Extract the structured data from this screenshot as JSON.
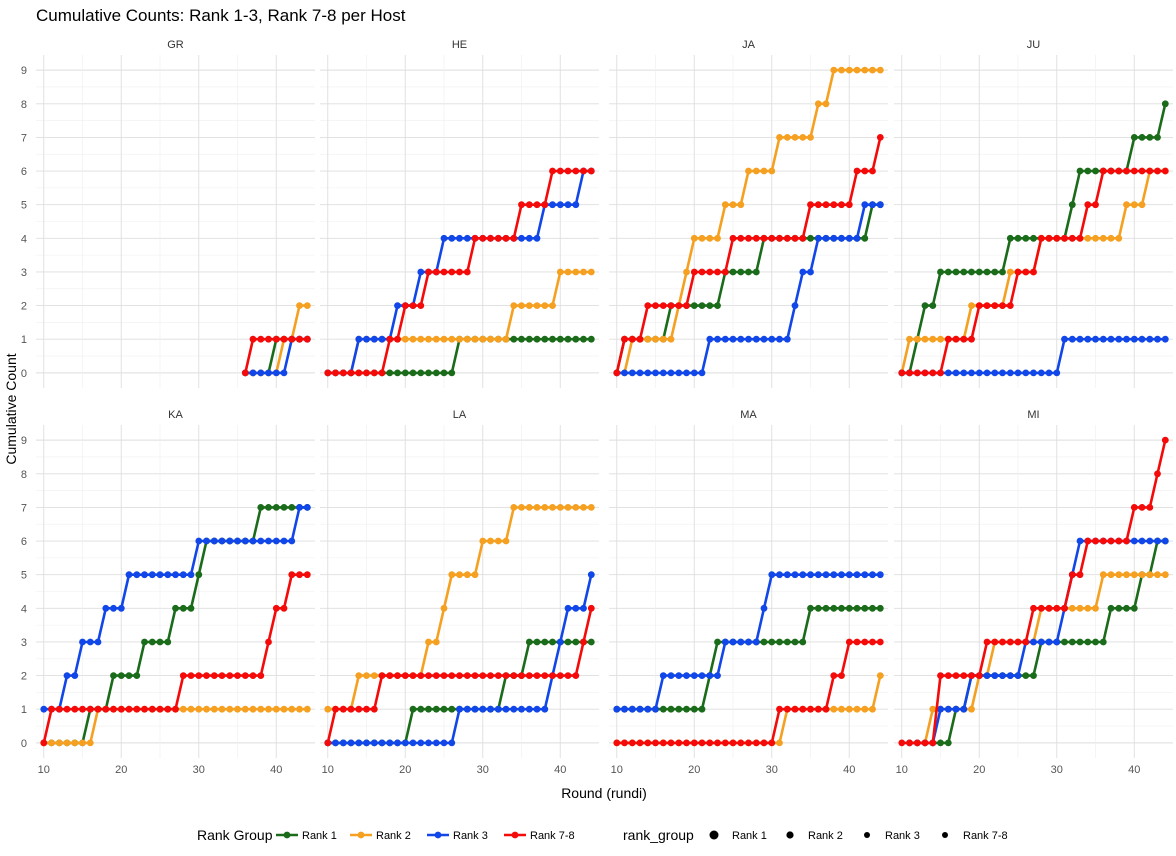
{
  "chart_data": {
    "type": "line",
    "title": "Cumulative Counts: Rank 1-3, Rank 7-8 per Host",
    "xlabel": "Round (rundi)",
    "ylabel": "Cumulative Count",
    "xlim": [
      9,
      45
    ],
    "ylim": [
      -0.45,
      9.45
    ],
    "x_ticks": [
      10,
      20,
      30,
      40
    ],
    "y_ticks": [
      0,
      1,
      2,
      3,
      4,
      5,
      6,
      7,
      8,
      9
    ],
    "grid": true,
    "legend_position": "bottom",
    "legend": {
      "color_title": "Rank Group",
      "shape_title": "rank_group",
      "entries": [
        {
          "label": "Rank 1",
          "color": "#1a6b1a"
        },
        {
          "label": "Rank 2",
          "color": "#f5a020"
        },
        {
          "label": "Rank 3",
          "color": "#1146e8"
        },
        {
          "label": "Rank 7-8",
          "color": "#f50a0a"
        }
      ],
      "shape_labels": [
        "Rank 1",
        "Rank 2",
        "Rank 3",
        "Rank 7-8"
      ]
    },
    "series_colors": {
      "Rank 1": "#1a6b1a",
      "Rank 2": "#f5a020",
      "Rank 3": "#1146e8",
      "Rank 7-8": "#f50a0a"
    },
    "facets": [
      {
        "name": "GR",
        "series": [
          {
            "name": "Rank 1",
            "start": 36,
            "end": 44,
            "steps": [
              [
                40,
                1
              ]
            ]
          },
          {
            "name": "Rank 2",
            "start": 36,
            "end": 44,
            "steps": [
              [
                41,
                1
              ],
              [
                43,
                2
              ]
            ]
          },
          {
            "name": "Rank 3",
            "start": 36,
            "end": 44,
            "steps": [
              [
                42,
                1
              ]
            ]
          },
          {
            "name": "Rank 7-8",
            "start": 36,
            "end": 44,
            "steps": [
              [
                37,
                1
              ]
            ]
          }
        ]
      },
      {
        "name": "HE",
        "series": [
          {
            "name": "Rank 1",
            "start": 10,
            "end": 44,
            "steps": [
              [
                27,
                1
              ]
            ]
          },
          {
            "name": "Rank 2",
            "start": 10,
            "end": 44,
            "steps": [
              [
                14,
                1
              ],
              [
                34,
                2
              ],
              [
                40,
                3
              ]
            ]
          },
          {
            "name": "Rank 3",
            "start": 10,
            "end": 44,
            "steps": [
              [
                14,
                1
              ],
              [
                19,
                2
              ],
              [
                22,
                3
              ],
              [
                25,
                4
              ],
              [
                38,
                5
              ],
              [
                43,
                6
              ]
            ]
          },
          {
            "name": "Rank 7-8",
            "start": 10,
            "end": 44,
            "steps": [
              [
                18,
                1
              ],
              [
                20,
                2
              ],
              [
                23,
                3
              ],
              [
                29,
                4
              ],
              [
                35,
                5
              ],
              [
                39,
                6
              ]
            ]
          }
        ]
      },
      {
        "name": "JA",
        "series": [
          {
            "name": "Rank 1",
            "start": 10,
            "end": 44,
            "steps": [
              [
                11,
                1
              ],
              [
                17,
                2
              ],
              [
                24,
                3
              ],
              [
                29,
                4
              ],
              [
                43,
                5
              ]
            ]
          },
          {
            "name": "Rank 2",
            "start": 10,
            "end": 44,
            "steps": [
              [
                12,
                1
              ],
              [
                18,
                2
              ],
              [
                19,
                3
              ],
              [
                20,
                4
              ],
              [
                24,
                5
              ],
              [
                27,
                6
              ],
              [
                31,
                7
              ],
              [
                36,
                8
              ],
              [
                38,
                9
              ]
            ]
          },
          {
            "name": "Rank 3",
            "start": 10,
            "end": 44,
            "steps": [
              [
                22,
                1
              ],
              [
                33,
                2
              ],
              [
                34,
                3
              ],
              [
                36,
                4
              ],
              [
                42,
                5
              ]
            ]
          },
          {
            "name": "Rank 7-8",
            "start": 10,
            "end": 44,
            "steps": [
              [
                11,
                1
              ],
              [
                14,
                2
              ],
              [
                20,
                3
              ],
              [
                25,
                4
              ],
              [
                35,
                5
              ],
              [
                41,
                6
              ],
              [
                44,
                7
              ]
            ]
          }
        ]
      },
      {
        "name": "JU",
        "series": [
          {
            "name": "Rank 1",
            "start": 10,
            "end": 44,
            "steps": [
              [
                12,
                1
              ],
              [
                13,
                2
              ],
              [
                15,
                3
              ],
              [
                24,
                4
              ],
              [
                32,
                5
              ],
              [
                33,
                6
              ],
              [
                40,
                7
              ],
              [
                44,
                8
              ]
            ]
          },
          {
            "name": "Rank 2",
            "start": 10,
            "end": 44,
            "steps": [
              [
                11,
                1
              ],
              [
                19,
                2
              ],
              [
                24,
                3
              ],
              [
                28,
                4
              ],
              [
                39,
                5
              ],
              [
                42,
                6
              ]
            ]
          },
          {
            "name": "Rank 3",
            "start": 10,
            "end": 44,
            "steps": [
              [
                31,
                1
              ]
            ]
          },
          {
            "name": "Rank 7-8",
            "start": 10,
            "end": 44,
            "steps": [
              [
                16,
                1
              ],
              [
                20,
                2
              ],
              [
                25,
                3
              ],
              [
                28,
                4
              ],
              [
                34,
                5
              ],
              [
                36,
                6
              ]
            ]
          }
        ]
      },
      {
        "name": "KA",
        "series": [
          {
            "name": "Rank 1",
            "start": 10,
            "end": 44,
            "steps": [
              [
                16,
                1
              ],
              [
                19,
                2
              ],
              [
                23,
                3
              ],
              [
                27,
                4
              ],
              [
                30,
                5
              ],
              [
                31,
                6
              ],
              [
                38,
                7
              ]
            ]
          },
          {
            "name": "Rank 2",
            "start": 10,
            "end": 44,
            "steps": [
              [
                17,
                1
              ]
            ]
          },
          {
            "name": "Rank 3",
            "start": 10,
            "end": 44,
            "steps": [
              [
                10,
                1
              ],
              [
                13,
                2
              ],
              [
                15,
                3
              ],
              [
                18,
                4
              ],
              [
                21,
                5
              ],
              [
                30,
                6
              ],
              [
                43,
                7
              ]
            ]
          },
          {
            "name": "Rank 7-8",
            "start": 10,
            "end": 44,
            "steps": [
              [
                11,
                1
              ],
              [
                28,
                2
              ],
              [
                39,
                3
              ],
              [
                40,
                4
              ],
              [
                42,
                5
              ]
            ]
          }
        ]
      },
      {
        "name": "LA",
        "series": [
          {
            "name": "Rank 1",
            "start": 10,
            "end": 44,
            "steps": [
              [
                21,
                1
              ],
              [
                33,
                2
              ],
              [
                36,
                3
              ]
            ]
          },
          {
            "name": "Rank 2",
            "start": 10,
            "end": 44,
            "steps": [
              [
                10,
                1
              ],
              [
                14,
                2
              ],
              [
                23,
                3
              ],
              [
                25,
                4
              ],
              [
                26,
                5
              ],
              [
                30,
                6
              ],
              [
                34,
                7
              ]
            ]
          },
          {
            "name": "Rank 3",
            "start": 10,
            "end": 44,
            "steps": [
              [
                27,
                1
              ],
              [
                39,
                2
              ],
              [
                40,
                3
              ],
              [
                41,
                4
              ],
              [
                44,
                5
              ]
            ]
          },
          {
            "name": "Rank 7-8",
            "start": 10,
            "end": 44,
            "steps": [
              [
                11,
                1
              ],
              [
                17,
                2
              ],
              [
                43,
                3
              ],
              [
                44,
                4
              ]
            ]
          }
        ]
      },
      {
        "name": "MA",
        "series": [
          {
            "name": "Rank 1",
            "start": 10,
            "end": 44,
            "steps": [
              [
                10,
                1
              ],
              [
                22,
                2
              ],
              [
                23,
                3
              ],
              [
                35,
                4
              ]
            ]
          },
          {
            "name": "Rank 2",
            "start": 10,
            "end": 44,
            "steps": [
              [
                32,
                1
              ],
              [
                44,
                2
              ]
            ]
          },
          {
            "name": "Rank 3",
            "start": 10,
            "end": 44,
            "steps": [
              [
                10,
                1
              ],
              [
                16,
                2
              ],
              [
                24,
                3
              ],
              [
                29,
                4
              ],
              [
                30,
                5
              ]
            ]
          },
          {
            "name": "Rank 7-8",
            "start": 10,
            "end": 44,
            "steps": [
              [
                31,
                1
              ],
              [
                38,
                2
              ],
              [
                40,
                3
              ]
            ]
          }
        ]
      },
      {
        "name": "MI",
        "series": [
          {
            "name": "Rank 1",
            "start": 12,
            "end": 44,
            "steps": [
              [
                17,
                1
              ],
              [
                19,
                2
              ],
              [
                28,
                3
              ],
              [
                37,
                4
              ],
              [
                41,
                5
              ],
              [
                43,
                6
              ]
            ]
          },
          {
            "name": "Rank 2",
            "start": 11,
            "end": 44,
            "steps": [
              [
                14,
                1
              ],
              [
                20,
                2
              ],
              [
                22,
                3
              ],
              [
                28,
                4
              ],
              [
                36,
                5
              ]
            ]
          },
          {
            "name": "Rank 3",
            "start": 11,
            "end": 44,
            "steps": [
              [
                15,
                1
              ],
              [
                19,
                2
              ],
              [
                26,
                3
              ],
              [
                31,
                4
              ],
              [
                32,
                5
              ],
              [
                33,
                6
              ]
            ]
          },
          {
            "name": "Rank 7-8",
            "start": 10,
            "end": 44,
            "steps": [
              [
                15,
                2
              ],
              [
                21,
                3
              ],
              [
                27,
                4
              ],
              [
                32,
                5
              ],
              [
                34,
                6
              ],
              [
                40,
                7
              ],
              [
                43,
                8
              ],
              [
                44,
                9
              ]
            ]
          }
        ]
      }
    ]
  }
}
